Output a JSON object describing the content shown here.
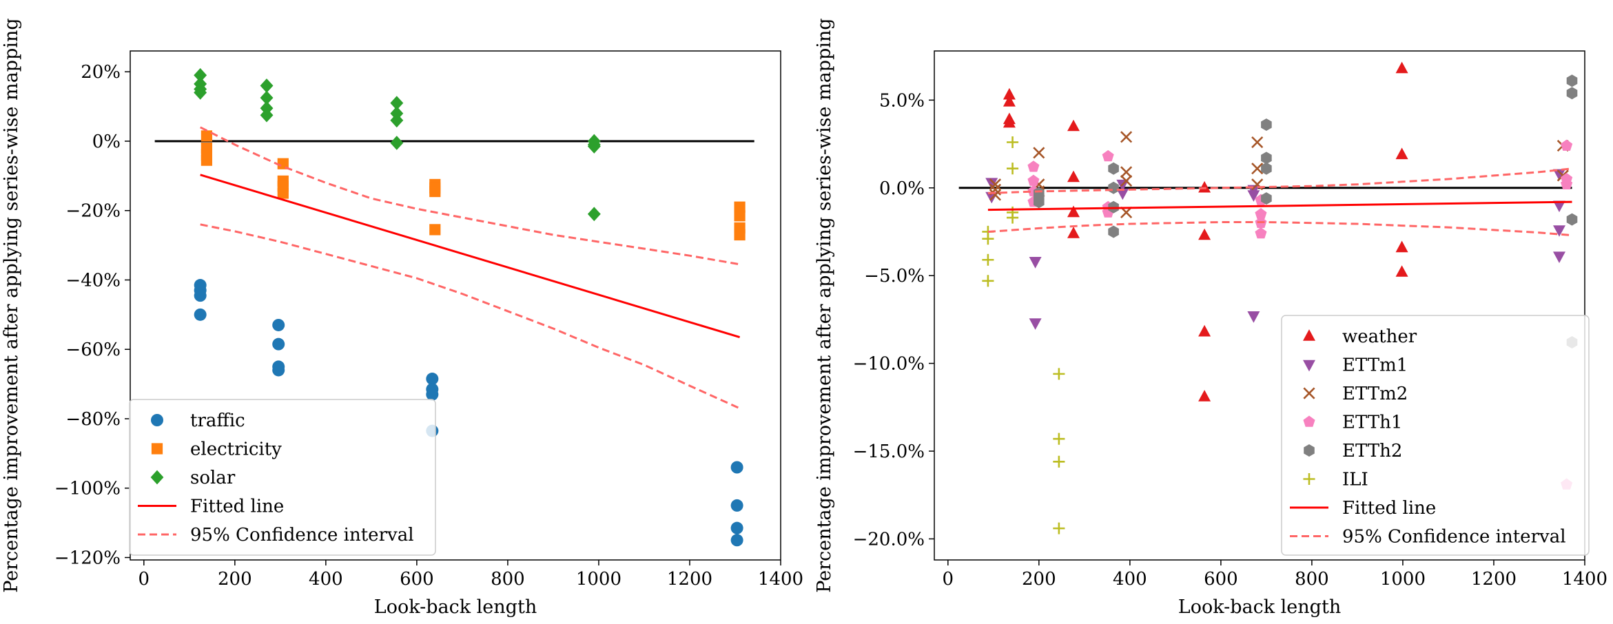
{
  "chart_data": [
    {
      "type": "scatter",
      "xlabel": "Look-back length",
      "ylabel": "Percentage improvement after applying series-wise mapping",
      "xlim": [
        -30,
        1400
      ],
      "ylim": [
        -120.7,
        26
      ],
      "xticks": [
        0,
        200,
        400,
        600,
        800,
        1000,
        1200,
        1400
      ],
      "yticks": [
        20,
        0,
        -20,
        -40,
        -60,
        -80,
        -100,
        -120
      ],
      "ytick_labels": [
        "20%",
        "0%",
        "−20%",
        "−40%",
        "−60%",
        "−80%",
        "−100%",
        "−120%"
      ],
      "legend_loc": "lower-left",
      "series": [
        {
          "name": "traffic",
          "marker": "circle",
          "color": "#1f77b4",
          "points": [
            [
              124,
              -41.5
            ],
            [
              124,
              -43
            ],
            [
              124,
              -44.5
            ],
            [
              124,
              -50
            ],
            [
              296,
              -53
            ],
            [
              296,
              -58.5
            ],
            [
              296,
              -65
            ],
            [
              296,
              -66
            ],
            [
              634,
              -68.5
            ],
            [
              634,
              -71.5
            ],
            [
              634,
              -73
            ],
            [
              634,
              -83.5
            ],
            [
              1304,
              -94
            ],
            [
              1304,
              -105
            ],
            [
              1304,
              -111.5
            ],
            [
              1304,
              -115
            ]
          ]
        },
        {
          "name": "electricity",
          "marker": "square",
          "color": "#ff7f0e",
          "points": [
            [
              138,
              1.5
            ],
            [
              138,
              -2
            ],
            [
              138,
              -4
            ],
            [
              138,
              -5.5
            ],
            [
              306,
              -6.5
            ],
            [
              306,
              -11.5
            ],
            [
              306,
              -13
            ],
            [
              306,
              -15
            ],
            [
              640,
              -12.5
            ],
            [
              640,
              -13.5
            ],
            [
              640,
              -14.5
            ],
            [
              640,
              -25.5
            ],
            [
              1310,
              -19
            ],
            [
              1310,
              -21.5
            ],
            [
              1310,
              -25
            ],
            [
              1310,
              -27
            ]
          ]
        },
        {
          "name": "solar",
          "marker": "diamond",
          "color": "#2ca02c",
          "points": [
            [
              124,
              19
            ],
            [
              124,
              16.5
            ],
            [
              124,
              15
            ],
            [
              124,
              14
            ],
            [
              270,
              16
            ],
            [
              270,
              12.5
            ],
            [
              270,
              9.5
            ],
            [
              270,
              7.5
            ],
            [
              556,
              11
            ],
            [
              556,
              8
            ],
            [
              556,
              6
            ],
            [
              556,
              -0.5
            ],
            [
              990,
              0
            ],
            [
              990,
              -1
            ],
            [
              990,
              -1.5
            ],
            [
              990,
              -21
            ]
          ]
        }
      ],
      "reference_line": {
        "y": 0,
        "x_range": [
          24,
          1342
        ],
        "color": "#000000"
      },
      "fitted_line": {
        "name": "Fitted line",
        "x_range": [
          124,
          1310
        ],
        "y": [
          -9.7,
          -56.5
        ],
        "color": "#ff0000"
      },
      "confidence_interval": {
        "name": "95% Confidence interval",
        "color": "#ff6666",
        "x": [
          124,
          200,
          300,
          400,
          500,
          600,
          700,
          800,
          900,
          1000,
          1100,
          1200,
          1310
        ],
        "upper": [
          4,
          -1,
          -7,
          -12,
          -16.5,
          -19.5,
          -22,
          -24.5,
          -27,
          -29,
          -31,
          -33,
          -35.5
        ],
        "lower": [
          -24,
          -26,
          -29,
          -32.5,
          -36,
          -39.5,
          -44,
          -49,
          -54,
          -59.5,
          -64.5,
          -70.5,
          -77
        ]
      }
    },
    {
      "type": "scatter",
      "xlabel": "Look-back length",
      "ylabel": "Percentage improvement after applying series-wise mapping",
      "xlim": [
        -30,
        1400
      ],
      "ylim": [
        -21.2,
        7.8
      ],
      "xticks": [
        0,
        200,
        400,
        600,
        800,
        1000,
        1200,
        1400
      ],
      "yticks": [
        5,
        0,
        -5,
        -10,
        -15,
        -20
      ],
      "ytick_labels": [
        "5.0%",
        "0.0%",
        "−5.0%",
        "−10.0%",
        "−15.0%",
        "−20.0%"
      ],
      "legend_loc": "lower-right",
      "series": [
        {
          "name": "weather",
          "marker": "triangle-up",
          "color": "#e41a1c",
          "points": [
            [
              135,
              5.3
            ],
            [
              135,
              4.9
            ],
            [
              135,
              3.9
            ],
            [
              135,
              3.7
            ],
            [
              276,
              3.5
            ],
            [
              276,
              0.6
            ],
            [
              276,
              -1.4
            ],
            [
              276,
              -2.6
            ],
            [
              564,
              0
            ],
            [
              564,
              -2.7
            ],
            [
              564,
              -8.2
            ],
            [
              564,
              -11.9
            ],
            [
              998,
              6.8
            ],
            [
              998,
              1.9
            ],
            [
              998,
              -3.4
            ],
            [
              998,
              -4.8
            ]
          ]
        },
        {
          "name": "ETTm1",
          "marker": "triangle-down",
          "color": "#984ea3",
          "points": [
            [
              96,
              0.3
            ],
            [
              96,
              -0.5
            ],
            [
              192,
              -4.2
            ],
            [
              192,
              -7.7
            ],
            [
              384,
              0.2
            ],
            [
              384,
              -0.3
            ],
            [
              672,
              -0.1
            ],
            [
              672,
              -0.4
            ],
            [
              672,
              -7.3
            ],
            [
              1344,
              0.8
            ],
            [
              1344,
              -1
            ],
            [
              1344,
              -2.4
            ],
            [
              1344,
              -3.9
            ]
          ]
        },
        {
          "name": "ETTm2",
          "marker": "x",
          "color": "#a65628",
          "points": [
            [
              104,
              0.2
            ],
            [
              104,
              -0.1
            ],
            [
              104,
              -0.4
            ],
            [
              200,
              2
            ],
            [
              200,
              0.2
            ],
            [
              200,
              -0.2
            ],
            [
              392,
              2.9
            ],
            [
              392,
              0.9
            ],
            [
              392,
              0.4
            ],
            [
              392,
              -1.4
            ],
            [
              680,
              2.6
            ],
            [
              680,
              1.1
            ],
            [
              680,
              0.2
            ],
            [
              1352,
              2.4
            ],
            [
              1352,
              0.7
            ]
          ]
        },
        {
          "name": "ETTh1",
          "marker": "pentagon",
          "color": "#f781bf",
          "points": [
            [
              188,
              1.2
            ],
            [
              188,
              0.4
            ],
            [
              188,
              -0.2
            ],
            [
              188,
              -0.8
            ],
            [
              352,
              1.8
            ],
            [
              352,
              -1.1
            ],
            [
              352,
              -1.4
            ],
            [
              688,
              -0.7
            ],
            [
              688,
              -1.5
            ],
            [
              688,
              -2
            ],
            [
              688,
              -2.6
            ],
            [
              1360,
              2.4
            ],
            [
              1360,
              0.5
            ],
            [
              1360,
              0.2
            ],
            [
              1360,
              -16.9
            ]
          ]
        },
        {
          "name": "ETTh2",
          "marker": "hexagon",
          "color": "#808080",
          "points": [
            [
              200,
              -0.3
            ],
            [
              200,
              -0.5
            ],
            [
              200,
              -0.8
            ],
            [
              364,
              1.1
            ],
            [
              364,
              0
            ],
            [
              364,
              -1.1
            ],
            [
              364,
              -2.5
            ],
            [
              700,
              3.6
            ],
            [
              700,
              1.7
            ],
            [
              700,
              1.1
            ],
            [
              700,
              -0.6
            ],
            [
              1372,
              6.1
            ],
            [
              1372,
              5.4
            ],
            [
              1372,
              -1.8
            ],
            [
              1372,
              -8.8
            ]
          ]
        },
        {
          "name": "ILI",
          "marker": "plus",
          "color": "#bcbd22",
          "points": [
            [
              88,
              -2.5
            ],
            [
              88,
              -2.9
            ],
            [
              88,
              -4.1
            ],
            [
              88,
              -5.3
            ],
            [
              142,
              2.6
            ],
            [
              142,
              1.1
            ],
            [
              142,
              -1.4
            ],
            [
              142,
              -1.7
            ],
            [
              244,
              -10.6
            ],
            [
              244,
              -14.3
            ],
            [
              244,
              -15.6
            ],
            [
              244,
              -19.4
            ]
          ]
        }
      ],
      "reference_line": {
        "y": 0,
        "x_range": [
          24,
          1372
        ],
        "color": "#000000"
      },
      "fitted_line": {
        "name": "Fitted line",
        "x_range": [
          88,
          1372
        ],
        "y": [
          -1.25,
          -0.8
        ],
        "color": "#ff0000"
      },
      "confidence_interval": {
        "name": "95% Confidence interval",
        "color": "#ff6666",
        "x": [
          88,
          200,
          300,
          400,
          500,
          600,
          700,
          800,
          900,
          1000,
          1100,
          1200,
          1300,
          1372
        ],
        "upper": [
          -0.3,
          -0.2,
          -0.15,
          -0.1,
          -0.05,
          0,
          0.05,
          0.1,
          0.2,
          0.35,
          0.5,
          0.7,
          0.9,
          1.1
        ],
        "lower": [
          -2.5,
          -2.3,
          -2.15,
          -2.05,
          -2.0,
          -1.95,
          -1.95,
          -2.0,
          -2.05,
          -2.15,
          -2.25,
          -2.4,
          -2.55,
          -2.7
        ]
      }
    }
  ]
}
